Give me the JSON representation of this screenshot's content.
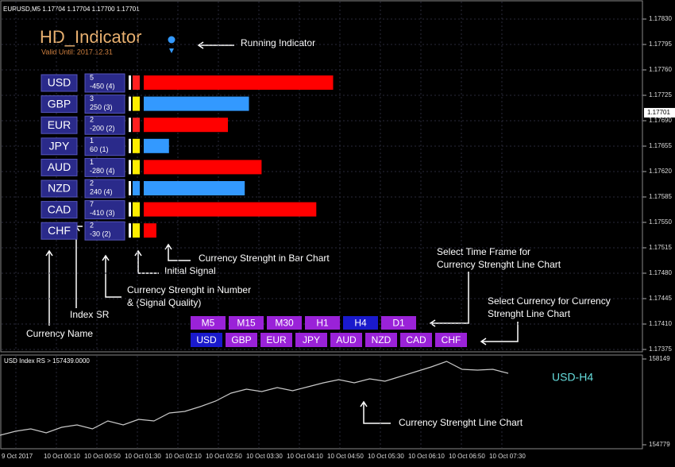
{
  "header": {
    "symbol_info": "EURUSD,M5  1.17704 1.17704 1.17700 1.17701"
  },
  "price_axis": {
    "ticks": [
      {
        "value": 1.1783,
        "label": "1.17830"
      },
      {
        "value": 1.17795,
        "label": "1.17795"
      },
      {
        "value": 1.1776,
        "label": "1.17760"
      },
      {
        "value": 1.17725,
        "label": "1.17725"
      },
      {
        "value": 1.1769,
        "label": "1.17690"
      },
      {
        "value": 1.17655,
        "label": "1.17655"
      },
      {
        "value": 1.1762,
        "label": "1.17620"
      },
      {
        "value": 1.17585,
        "label": "1.17585"
      },
      {
        "value": 1.1755,
        "label": "1.17550"
      },
      {
        "value": 1.17515,
        "label": "1.17515"
      },
      {
        "value": 1.1748,
        "label": "1.17480"
      },
      {
        "value": 1.17445,
        "label": "1.17445"
      },
      {
        "value": 1.1741,
        "label": "1.17410"
      },
      {
        "value": 1.17375,
        "label": "1.17375"
      }
    ],
    "current": {
      "value": 1.17701,
      "label": "1.17701"
    }
  },
  "indicator": {
    "title": "HD_Indicator",
    "valid_until": "Valid Until: 2017.12.31",
    "rows": [
      {
        "currency": "USD",
        "index_sr": 5,
        "strength": -450,
        "strength_label": "-450 (4)",
        "signal_color": "#ff2020",
        "bar_color": "#ff0000"
      },
      {
        "currency": "GBP",
        "index_sr": 3,
        "strength": 250,
        "strength_label": "250 (3)",
        "signal_color": "#ffee00",
        "bar_color": "#3399ff"
      },
      {
        "currency": "EUR",
        "index_sr": 2,
        "strength": -200,
        "strength_label": "-200 (2)",
        "signal_color": "#ff2020",
        "bar_color": "#ff0000"
      },
      {
        "currency": "JPY",
        "index_sr": 1,
        "strength": 60,
        "strength_label": "60 (1)",
        "signal_color": "#ffee00",
        "bar_color": "#3399ff"
      },
      {
        "currency": "AUD",
        "index_sr": 1,
        "strength": -280,
        "strength_label": "-280 (4)",
        "signal_color": "#ffee00",
        "bar_color": "#ff0000"
      },
      {
        "currency": "NZD",
        "index_sr": 2,
        "strength": 240,
        "strength_label": "240 (4)",
        "signal_color": "#3399ff",
        "bar_color": "#3399ff"
      },
      {
        "currency": "CAD",
        "index_sr": 7,
        "strength": -410,
        "strength_label": "-410 (3)",
        "signal_color": "#ffee00",
        "bar_color": "#ff0000"
      },
      {
        "currency": "CHF",
        "index_sr": 2,
        "strength": -30,
        "strength_label": "-30 (2)",
        "signal_color": "#ffee00",
        "bar_color": "#ff0000"
      }
    ]
  },
  "timeframes": {
    "items": [
      "M5",
      "M15",
      "M30",
      "H1",
      "H4",
      "D1"
    ],
    "selected": "H4"
  },
  "currencies": {
    "items": [
      "USD",
      "GBP",
      "EUR",
      "JPY",
      "AUD",
      "NZD",
      "CAD",
      "CHF"
    ],
    "selected": "USD"
  },
  "annotations": {
    "running": "Running Indicator",
    "bar_chart": "Currency Strenght in Bar Chart",
    "initial_signal": "Initial Signal",
    "number_1": "Currency Strenght in Number",
    "number_2": "& (Signal Quality)",
    "index_sr": "Index SR",
    "currency_name": "Currency Name",
    "timeframe_1": "Select Time Frame for",
    "timeframe_2": "Currency Strenght Line Chart",
    "currency_1": "Select Currency for Currency",
    "currency_2": "Strenght Line Chart",
    "line_chart": "Currency Strenght Line Chart"
  },
  "chart_data": {
    "type": "line",
    "title": "USD Index RS > 157439.0000",
    "label": "USD-H4",
    "color": "#c8c8c8",
    "values": [
      155153,
      155309,
      155403,
      155247,
      155465,
      155559,
      155403,
      155715,
      155559,
      155777,
      155715,
      156027,
      156089,
      156277,
      156495,
      156807,
      156963,
      156869,
      157025,
      156901,
      157057,
      157213,
      157337,
      157213,
      157369,
      157275,
      157462,
      157649,
      157837,
      158055,
      157743,
      157711,
      157743,
      157587
    ],
    "ylim": [
      154779,
      158149
    ],
    "yticks": [
      154779,
      158149
    ],
    "x_tick_labels": [
      "9 Oct 2017",
      "10 Oct 00:10",
      "10 Oct 00:50",
      "10 Oct 01:30",
      "10 Oct 02:10",
      "10 Oct 02:50",
      "10 Oct 03:30",
      "10 Oct 04:10",
      "10 Oct 04:50",
      "10 Oct 05:30",
      "10 Oct 06:10",
      "10 Oct 06:50",
      "10 Oct 07:30"
    ]
  }
}
